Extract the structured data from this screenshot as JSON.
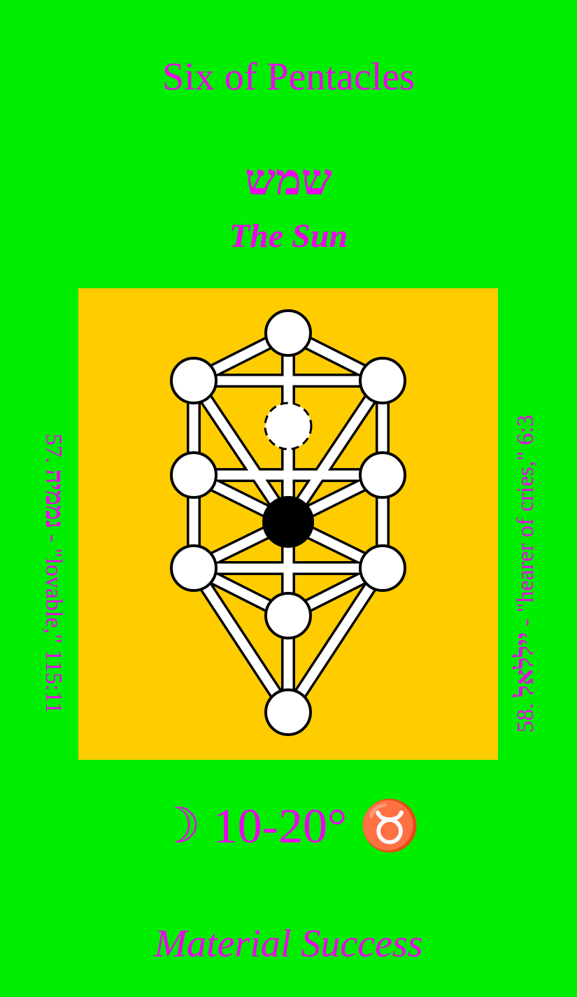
{
  "card": {
    "title": "Six of Pentacles",
    "hebrew": "שמש",
    "planet": "The Sun",
    "decan": "☽ 10-20° ♉",
    "meaning": "Material Success"
  },
  "angels": {
    "left": {
      "number": "57.",
      "hebrew": "נממיה",
      "text": " - \"lovable,\" 115:11"
    },
    "right": {
      "number": "58.",
      "hebrew": "ייללאל",
      "text": " - \"hearer of cries,\" 6:3"
    }
  },
  "colors": {
    "background": "#00ee00",
    "text": "#ee00ee",
    "panel": "#ffcc00",
    "sephira": "#ffffff",
    "highlighted_sephira": "#000000"
  },
  "tree_of_life": {
    "highlighted": "Tiphareth",
    "hidden_sephira": "Daath"
  }
}
